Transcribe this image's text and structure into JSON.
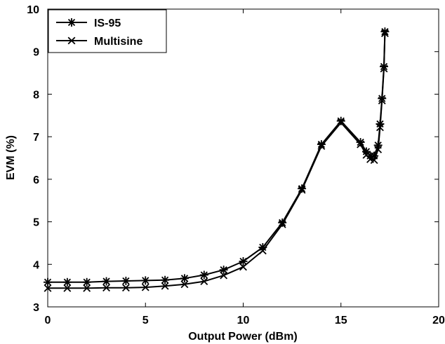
{
  "chart_data": {
    "type": "line",
    "title": "",
    "xlabel": "Output Power (dBm)",
    "ylabel": "EVM (%)",
    "xlim": [
      0,
      20
    ],
    "ylim": [
      3,
      10
    ],
    "xticks": [
      0,
      5,
      10,
      15,
      20
    ],
    "yticks": [
      3,
      4,
      5,
      6,
      7,
      8,
      9,
      10
    ],
    "grid": false,
    "legend_position": "top-left",
    "series": [
      {
        "name": "IS-95",
        "marker": "asterisk",
        "color": "#000000",
        "x": [
          0,
          1,
          2,
          3,
          4,
          5,
          6,
          7,
          8,
          9,
          10,
          11,
          12,
          13,
          14,
          15,
          16,
          16.3,
          16.5,
          16.7,
          16.9,
          17.0,
          17.1,
          17.2,
          17.25
        ],
        "y": [
          3.58,
          3.58,
          3.58,
          3.6,
          3.61,
          3.62,
          3.63,
          3.67,
          3.75,
          3.87,
          4.07,
          4.4,
          4.98,
          5.78,
          6.82,
          7.37,
          6.87,
          6.65,
          6.55,
          6.55,
          6.8,
          7.3,
          7.9,
          8.65,
          9.47
        ]
      },
      {
        "name": "Multisine",
        "marker": "x",
        "color": "#000000",
        "x": [
          0,
          1,
          2,
          3,
          4,
          5,
          6,
          7,
          8,
          9,
          10,
          11,
          12,
          13,
          14,
          15,
          16,
          16.3,
          16.5,
          16.7,
          16.9,
          17.0,
          17.1,
          17.2,
          17.25
        ],
        "y": [
          3.44,
          3.44,
          3.44,
          3.45,
          3.45,
          3.46,
          3.49,
          3.53,
          3.6,
          3.74,
          3.94,
          4.32,
          4.94,
          5.75,
          6.78,
          7.33,
          6.82,
          6.57,
          6.47,
          6.45,
          6.7,
          7.22,
          7.85,
          8.6,
          9.43
        ]
      }
    ]
  }
}
